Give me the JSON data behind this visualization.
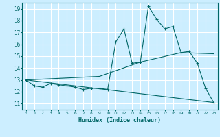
{
  "title": "",
  "xlabel": "Humidex (Indice chaleur)",
  "bg_color": "#cceeff",
  "grid_color": "#ffffff",
  "line_color": "#006666",
  "xlim": [
    -0.5,
    23.5
  ],
  "ylim": [
    10.5,
    19.5
  ],
  "yticks": [
    11,
    12,
    13,
    14,
    15,
    16,
    17,
    18,
    19
  ],
  "xticks": [
    0,
    1,
    2,
    3,
    4,
    5,
    6,
    7,
    8,
    9,
    10,
    11,
    12,
    13,
    14,
    15,
    16,
    17,
    18,
    19,
    20,
    21,
    22,
    23
  ],
  "series1_x": [
    0,
    1,
    2,
    3,
    4,
    5,
    6,
    7,
    8,
    9,
    10,
    11,
    12,
    13,
    14,
    15,
    16,
    17,
    18,
    19,
    20,
    21,
    22,
    23
  ],
  "series1_y": [
    13.0,
    12.5,
    12.4,
    12.7,
    12.6,
    12.5,
    12.4,
    12.2,
    12.3,
    12.3,
    12.2,
    16.2,
    17.3,
    14.4,
    14.5,
    19.2,
    18.1,
    17.3,
    17.5,
    15.3,
    15.4,
    14.4,
    12.3,
    11.1
  ],
  "series2_x": [
    0,
    23
  ],
  "series2_y": [
    13.0,
    11.1
  ],
  "series3_x": [
    0,
    9,
    14,
    19,
    23
  ],
  "series3_y": [
    13.0,
    13.3,
    14.5,
    15.3,
    15.2
  ]
}
